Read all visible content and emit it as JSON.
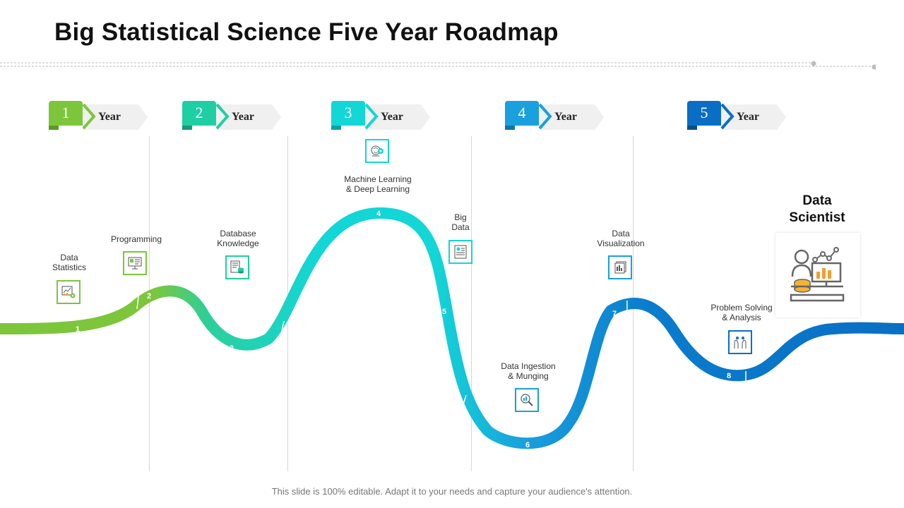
{
  "title": "Big Statistical Science Five Year Roadmap",
  "footer": "This slide is 100% editable. Adapt it to your needs and capture your audience's attention.",
  "years": [
    {
      "number": "1",
      "label": "Year",
      "color": "#7dc63c"
    },
    {
      "number": "2",
      "label": "Year",
      "color": "#1fcfa3"
    },
    {
      "number": "3",
      "label": "Year",
      "color": "#13d6d6"
    },
    {
      "number": "4",
      "label": "Year",
      "color": "#1aa0dc"
    },
    {
      "number": "5",
      "label": "Year",
      "color": "#0a6fc4"
    }
  ],
  "milestones": [
    {
      "label": "Data\nStatistics",
      "step": "1",
      "icon": "chart-gear-icon"
    },
    {
      "label": "Programming",
      "step": "2",
      "icon": "monitor-code-icon"
    },
    {
      "label": "Database\nKnowledge",
      "step": "3",
      "icon": "database-icon"
    },
    {
      "label": "Machine Learning\n& Deep Learning",
      "step": "4",
      "icon": "brain-gear-icon"
    },
    {
      "label": "Big\nData",
      "step": "5",
      "icon": "data-document-icon"
    },
    {
      "label": "Data Ingestion\n& Munging",
      "step": "6",
      "icon": "magnifier-data-icon"
    },
    {
      "label": "Data\nVisualization",
      "step": "7",
      "icon": "report-stack-icon"
    },
    {
      "label": "Problem Solving\n& Analysis",
      "step": "8",
      "icon": "hands-analysis-icon"
    }
  ],
  "goal": {
    "label": "Data\nScientist",
    "icon": "data-scientist-icon"
  },
  "colors": {
    "green": "#7dc63c",
    "teal": "#1fcfa3",
    "cyan": "#13d6d6",
    "blue": "#1aa0dc",
    "navy": "#0a6fc4"
  }
}
